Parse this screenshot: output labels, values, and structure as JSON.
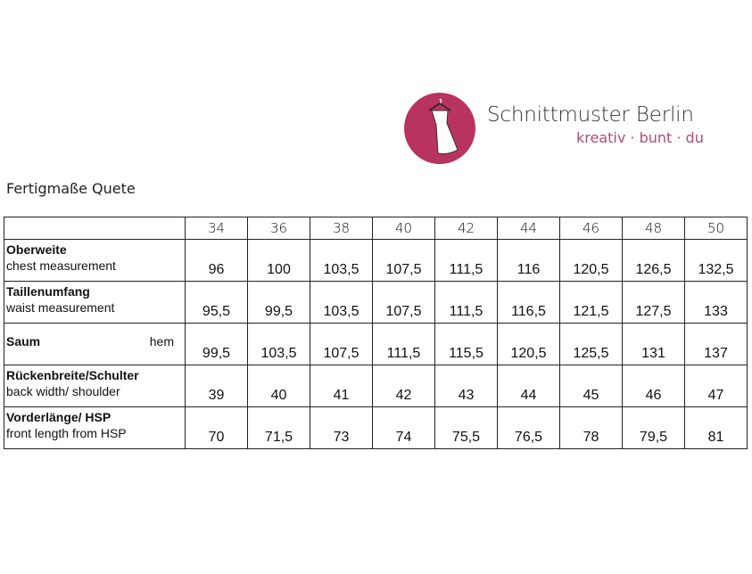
{
  "logo": {
    "brand": "Schnittmuster Berlin",
    "tagline": "kreativ · bunt · du",
    "color": "#b8335f",
    "icon": "dress-on-hanger-icon"
  },
  "title": "Fertigmaße Quete",
  "table": {
    "sizes": [
      "34",
      "36",
      "38",
      "40",
      "42",
      "44",
      "46",
      "48",
      "50"
    ],
    "rows": [
      {
        "label": "Oberweite",
        "sublabel": "chest measurement",
        "values": [
          "96",
          "100",
          "103,5",
          "107,5",
          "111,5",
          "116",
          "120,5",
          "126,5",
          "132,5"
        ]
      },
      {
        "label": "Taillenumfang",
        "sublabel": "waist measurement",
        "values": [
          "95,5",
          "99,5",
          "103,5",
          "107,5",
          "111,5",
          "116,5",
          "121,5",
          "127,5",
          "133"
        ]
      },
      {
        "label": "Saum",
        "sublabel": "hem",
        "values": [
          "99,5",
          "103,5",
          "107,5",
          "111,5",
          "115,5",
          "120,5",
          "125,5",
          "131",
          "137"
        ]
      },
      {
        "label": "Rückenbreite/Schulter",
        "sublabel": "back width/ shoulder",
        "values": [
          "39",
          "40",
          "41",
          "42",
          "43",
          "44",
          "45",
          "46",
          "47"
        ]
      },
      {
        "label": "Vorderlänge/ HSP",
        "sublabel": "front length from HSP",
        "values": [
          "70",
          "71,5",
          "73",
          "74",
          "75,5",
          "76,5",
          "78",
          "79,5",
          "81"
        ]
      }
    ]
  }
}
